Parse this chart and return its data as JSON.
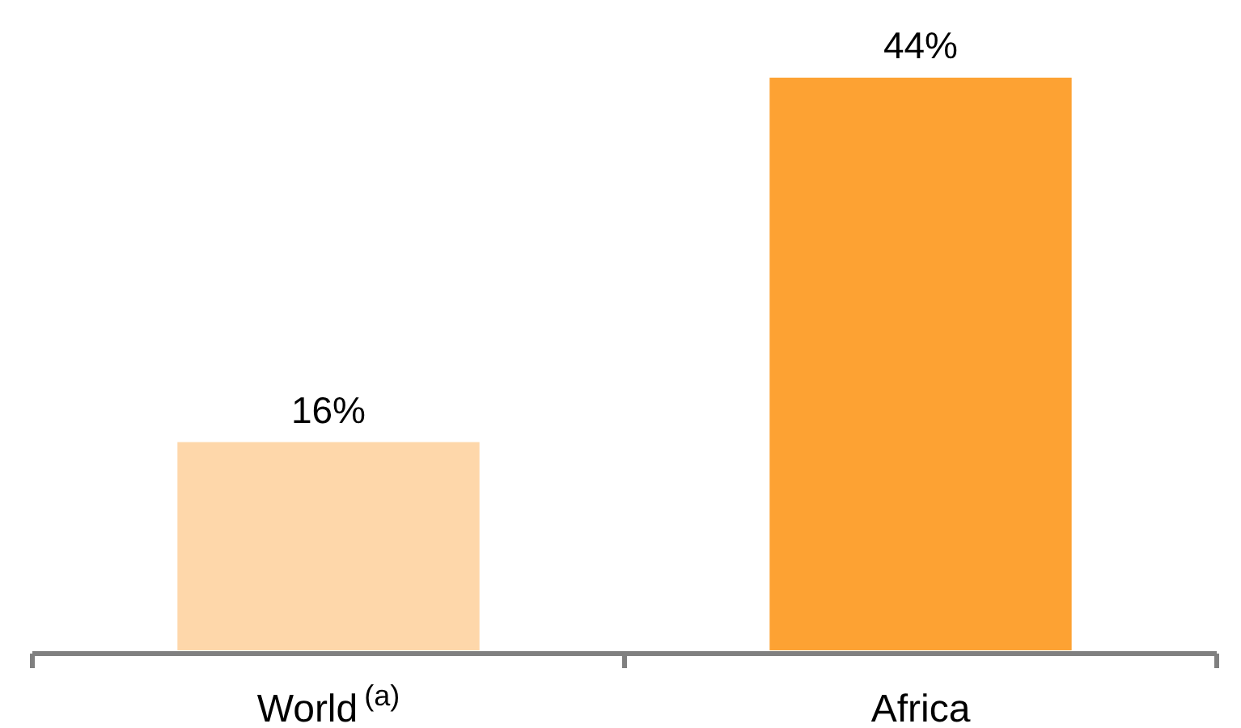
{
  "chart_data": {
    "type": "bar",
    "categories": [
      "World$^{(a)}$",
      "Africa"
    ],
    "values": [
      16,
      44
    ],
    "colors": [
      "#fed7aa",
      "#fda233"
    ],
    "value_labels": [
      "16%",
      "44%"
    ]
  }
}
